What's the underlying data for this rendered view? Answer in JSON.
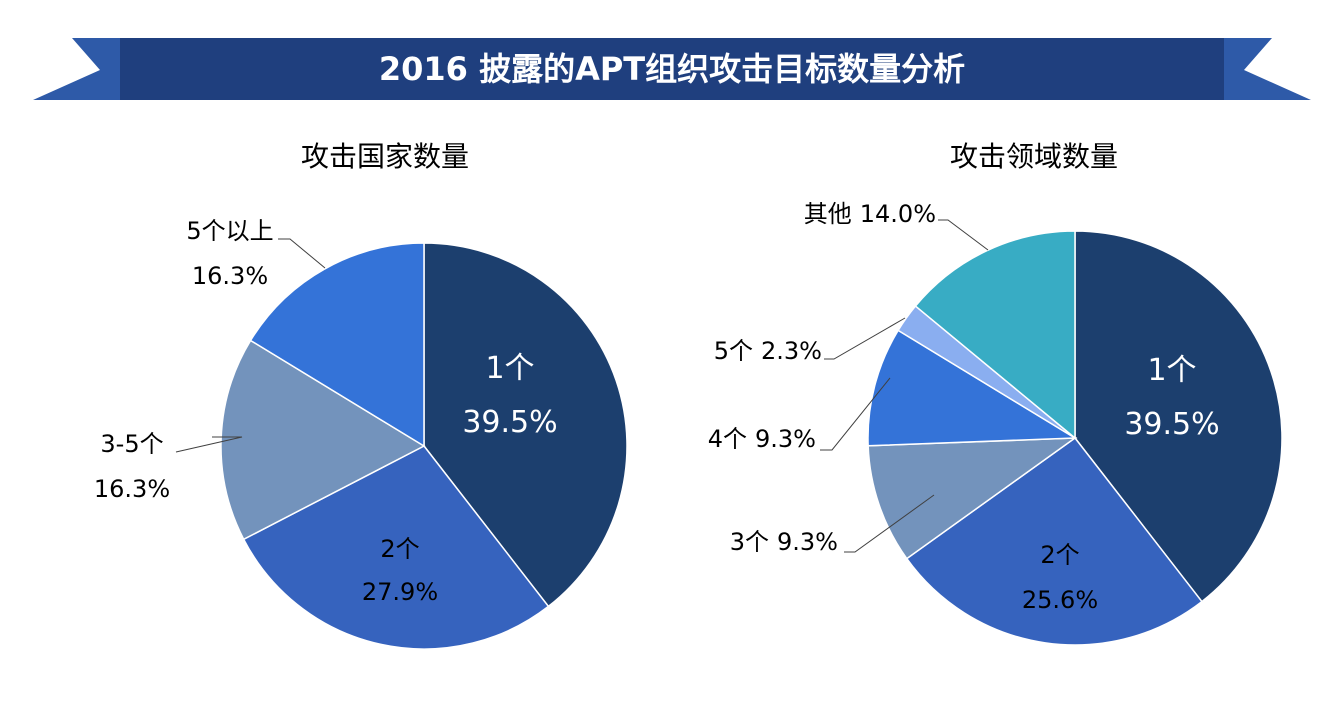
{
  "banner": {
    "title": "2016 披露的APT组织攻击目标数量分析",
    "color": "#1F3F7E",
    "accent": "#2E5AA8"
  },
  "chart_data": [
    {
      "type": "pie",
      "title": "攻击国家数量",
      "start_angle_deg": 0,
      "direction": "clockwise",
      "slices": [
        {
          "label": "1个",
          "value": 39.5,
          "pct_text": "39.5%",
          "color": "#1C3F6E",
          "label_mode": "inside",
          "text_color": "#ffffff"
        },
        {
          "label": "2个",
          "value": 27.9,
          "pct_text": "27.9%",
          "color": "#3663BE",
          "label_mode": "inside",
          "text_color": "#000000"
        },
        {
          "label": "3-5个",
          "value": 16.3,
          "pct_text": "16.3%",
          "color": "#7393BC",
          "label_mode": "outside-left",
          "text_color": "#000000"
        },
        {
          "label": "5个以上",
          "value": 16.3,
          "pct_text": "16.3%",
          "color": "#3473D8",
          "label_mode": "outside-top",
          "text_color": "#000000"
        }
      ]
    },
    {
      "type": "pie",
      "title": "攻击领域数量",
      "start_angle_deg": 0,
      "direction": "clockwise",
      "slices": [
        {
          "label": "1个",
          "value": 39.5,
          "pct_text": "39.5%",
          "color": "#1C3F6E",
          "label_mode": "inside",
          "text_color": "#ffffff"
        },
        {
          "label": "2个",
          "value": 25.6,
          "pct_text": "25.6%",
          "color": "#3663BE",
          "label_mode": "inside",
          "text_color": "#000000"
        },
        {
          "label": "3个",
          "value": 9.3,
          "pct_text": "9.3%",
          "color": "#7393BC",
          "label_mode": "outside-inline",
          "text_color": "#000000"
        },
        {
          "label": "4个",
          "value": 9.3,
          "pct_text": "9.3%",
          "color": "#3473D8",
          "label_mode": "outside-inline",
          "text_color": "#000000"
        },
        {
          "label": "5个",
          "value": 2.3,
          "pct_text": "2.3%",
          "color": "#8AAEF0",
          "label_mode": "outside-inline",
          "text_color": "#000000"
        },
        {
          "label": "其他",
          "value": 14.0,
          "pct_text": "14.0%",
          "color": "#38ACC4",
          "label_mode": "outside-inline",
          "text_color": "#000000"
        }
      ]
    }
  ]
}
